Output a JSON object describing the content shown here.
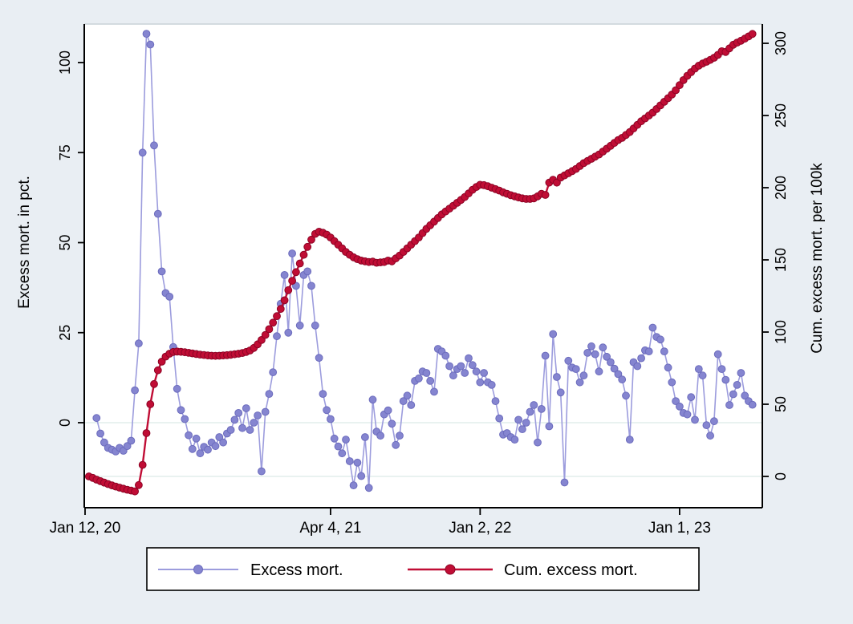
{
  "figure": {
    "background_color": "#e9eef3",
    "plot_background_color": "#ffffff",
    "axis_color": "#000000",
    "top_border_color": "#c9d2d8",
    "zero_gridline_color": "#dcebe7"
  },
  "legend": {
    "excess_label": "Excess mort.",
    "cum_label": "Cum. excess mort."
  },
  "chart_data": {
    "type": "line",
    "title": "",
    "grid": "zero-lines-only",
    "legend_position": "bottom-center",
    "x_axis": {
      "unit": "week",
      "week0_date": "Jan 12, 20",
      "tick_labels": [
        "Jan 12, 20",
        "Apr 4, 21",
        "Jan 2, 22",
        "Jan 1, 23"
      ],
      "tick_weeks": [
        0,
        64,
        103,
        155
      ]
    },
    "y_left": {
      "title": "Excess mort. in pct.",
      "ticks": [
        100,
        75,
        50,
        25,
        0
      ],
      "range": [
        -22,
        112
      ]
    },
    "y_right": {
      "title": "Cum. excess mort. per 100k",
      "ticks": [
        300,
        250,
        200,
        150,
        100,
        50,
        0
      ],
      "range": [
        -15,
        320
      ]
    },
    "series": [
      {
        "name": "Excess mort.",
        "axis": "left",
        "line_color": "#9c9cdd",
        "marker_fill": "#8585d0",
        "marker_stroke": "#6c6cbd",
        "line_width": 1.6,
        "marker_radius": 4.4,
        "start_week": 3,
        "values": [
          1.3,
          -3,
          -5.5,
          -7,
          -7.5,
          -8,
          -7,
          -7.8,
          -6.5,
          -5,
          9,
          22,
          75,
          108,
          105,
          77,
          58,
          42,
          36,
          35,
          21,
          9.4,
          3.5,
          1,
          -3.5,
          -7.3,
          -4.4,
          -8.5,
          -6.7,
          -7.5,
          -5.5,
          -6.5,
          -4,
          -5.5,
          -3,
          -2,
          0.8,
          2.7,
          -1.5,
          4,
          -2,
          0,
          2,
          -13.5,
          3,
          8,
          14,
          24,
          33,
          41,
          25,
          47,
          38,
          27,
          41,
          42,
          38,
          27,
          18,
          8,
          3.5,
          1,
          -4.4,
          -6.6,
          -8.5,
          -4.7,
          -10.7,
          -17.4,
          -11.1,
          -14.8,
          -4,
          -18.1,
          6.4,
          -2.5,
          -3.6,
          2.3,
          3.4,
          -0.3,
          -6.2,
          -3.6,
          6,
          7.5,
          4.9,
          11.6,
          12.3,
          14.2,
          13.8,
          11.6,
          8.6,
          20.5,
          19.8,
          18.6,
          15.7,
          13.1,
          14.9,
          15.7,
          13.8,
          17.9,
          16,
          14.2,
          11.2,
          13.8,
          11.2,
          10.5,
          6,
          1.2,
          -3.3,
          -2.9,
          -4,
          -4.7,
          0.8,
          -1.8,
          0,
          3,
          4.9,
          -5.5,
          3.8,
          18.6,
          -1,
          24.6,
          12.7,
          8.4,
          -16.6,
          17.2,
          15.3,
          14.9,
          11.2,
          13.1,
          19.4,
          21.2,
          19,
          14.2,
          20.9,
          18.3,
          16.8,
          15,
          13.5,
          12,
          7.5,
          -4.7,
          16.8,
          15.7,
          17.9,
          20.1,
          19.8,
          26.4,
          23.8,
          23.1,
          19.8,
          15.3,
          11.2,
          6,
          4.5,
          2.7,
          2.3,
          7.1,
          0.8,
          14.9,
          13.1,
          -0.7,
          -3.6,
          0.4,
          19,
          14.9,
          11.9,
          4.9,
          7.9,
          10.5,
          13.8,
          7.5,
          6,
          5
        ]
      },
      {
        "name": "Cum. excess mort.",
        "axis": "right",
        "line_color": "#c00d35",
        "marker_fill": "#c00d35",
        "marker_stroke": "#8d0425",
        "line_width": 2.4,
        "marker_radius": 4.4,
        "start_week": 1,
        "values": [
          0,
          -1,
          -2.2,
          -3.3,
          -4.3,
          -5.3,
          -6.2,
          -7,
          -7.8,
          -8.5,
          -9.2,
          -9.8,
          -10.4,
          -6,
          8,
          30,
          50,
          64,
          73.5,
          79.5,
          83,
          85,
          86.2,
          86.5,
          86.3,
          86,
          85.6,
          85.2,
          84.8,
          84.4,
          84.1,
          83.8,
          83.6,
          83.5,
          83.6,
          83.8,
          84,
          84.3,
          84.6,
          85,
          85.5,
          86.2,
          87.2,
          89,
          91.5,
          94.5,
          98,
          102,
          106.5,
          111,
          116,
          122,
          129,
          135.5,
          141.5,
          147.5,
          153.5,
          159,
          164,
          168,
          169.5,
          168.8,
          167.5,
          165.5,
          163,
          160.5,
          158,
          155.5,
          153.5,
          151.8,
          150.5,
          149.5,
          149,
          148.5,
          148.8,
          148,
          148.3,
          148.5,
          149.5,
          149,
          151,
          153,
          155.5,
          158,
          160.5,
          163,
          165.5,
          168.5,
          171.5,
          174,
          176.5,
          179,
          181.5,
          183.5,
          185.5,
          187.5,
          189.5,
          191.5,
          193.5,
          196,
          198.5,
          200.5,
          202,
          201.8,
          201,
          200,
          199,
          198,
          196.8,
          195.8,
          194.8,
          194,
          193.2,
          192.6,
          192.2,
          192.2,
          192.6,
          194,
          195.8,
          195,
          203.5,
          205.5,
          203.5,
          207,
          208.5,
          210,
          211.5,
          213,
          215,
          217,
          218.5,
          220,
          221.5,
          223,
          225,
          227,
          229,
          231,
          233,
          234.5,
          236.5,
          238.5,
          241,
          243.5,
          246,
          248,
          250,
          252,
          254.5,
          257,
          259.5,
          262,
          264.5,
          267.5,
          271,
          274.5,
          277.5,
          280,
          282.5,
          284.5,
          286,
          287.2,
          288.5,
          290,
          292,
          294.5,
          294,
          296.5,
          299,
          300.5,
          301.8,
          303.2,
          304.8,
          306.5
        ]
      }
    ]
  }
}
